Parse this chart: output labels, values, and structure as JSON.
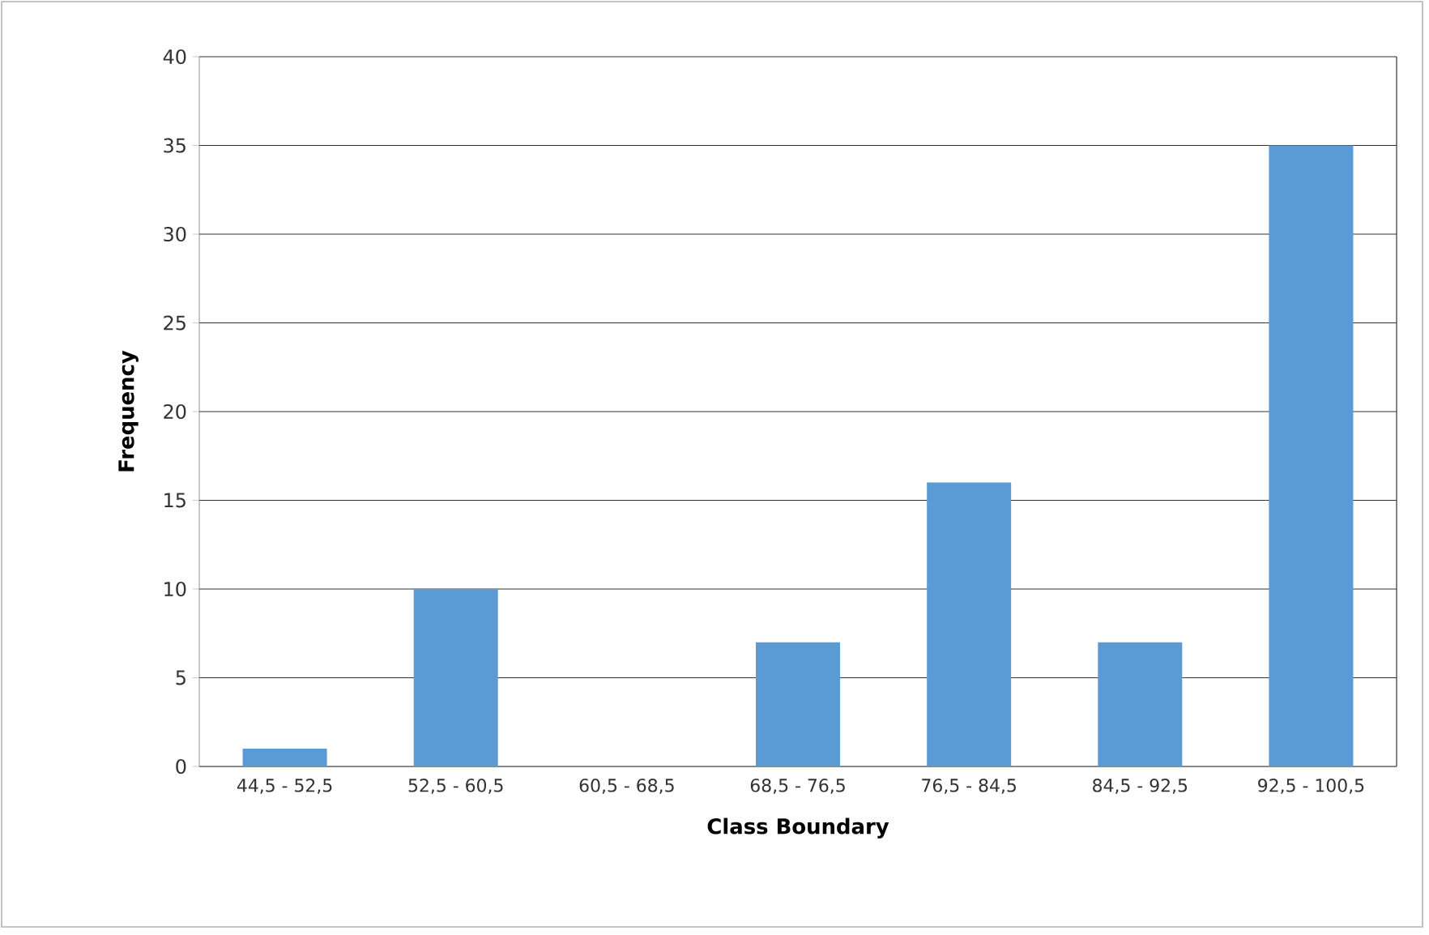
{
  "chart_data": {
    "type": "bar",
    "xlabel": "Class Boundary",
    "ylabel": "Frequency",
    "categories": [
      "44,5 - 52,5",
      "52,5 - 60,5",
      "60,5 - 68,5",
      "68,5 - 76,5",
      "76,5 - 84,5",
      "84,5 - 92,5",
      "92,5 - 100,5"
    ],
    "values": [
      1,
      10,
      0,
      7,
      16,
      7,
      35
    ],
    "color": "#5b9bd5",
    "ylim": [
      0,
      40
    ],
    "yticks": [
      0,
      5,
      10,
      15,
      20,
      25,
      30,
      35,
      40
    ],
    "grid": "y"
  }
}
